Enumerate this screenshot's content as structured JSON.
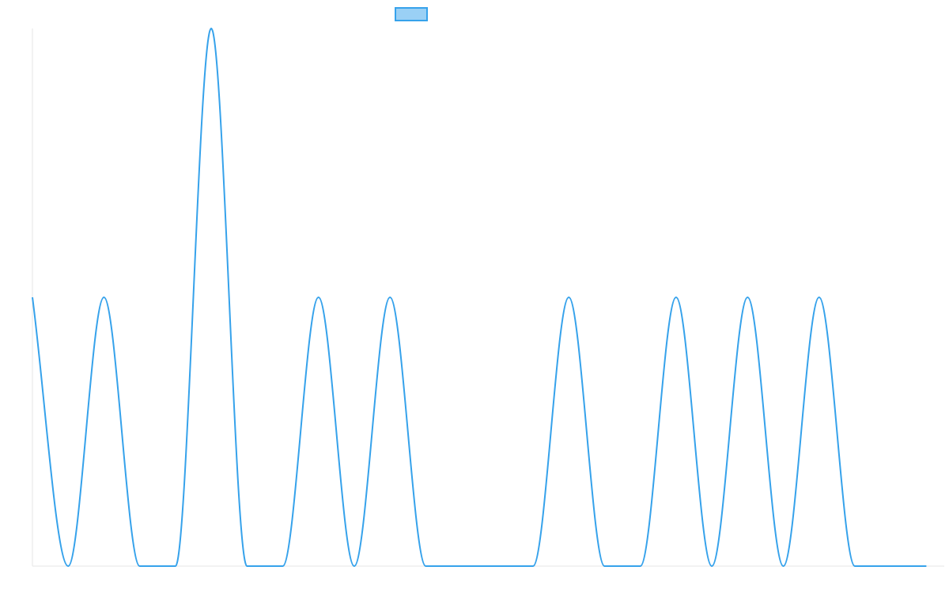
{
  "chart_data": {
    "type": "line",
    "x": [
      0,
      1,
      2,
      3,
      4,
      5,
      6,
      7,
      8,
      9,
      10,
      11,
      12,
      13,
      14,
      15,
      16,
      17,
      18,
      19,
      20,
      21,
      22,
      23,
      24,
      25
    ],
    "series": [
      {
        "values": [
          1,
          0,
          1,
          0,
          0,
          2,
          0,
          0,
          1,
          0,
          1,
          0,
          0,
          0,
          0,
          1,
          0,
          0,
          1,
          0,
          1,
          0,
          1,
          0,
          0,
          0
        ],
        "color": "#36a2eb",
        "fill_color": "#9ad0f5"
      }
    ],
    "ylim": [
      0,
      2
    ],
    "xlim": [
      0,
      25.5
    ],
    "grid": false,
    "legend_position": "top-center"
  }
}
